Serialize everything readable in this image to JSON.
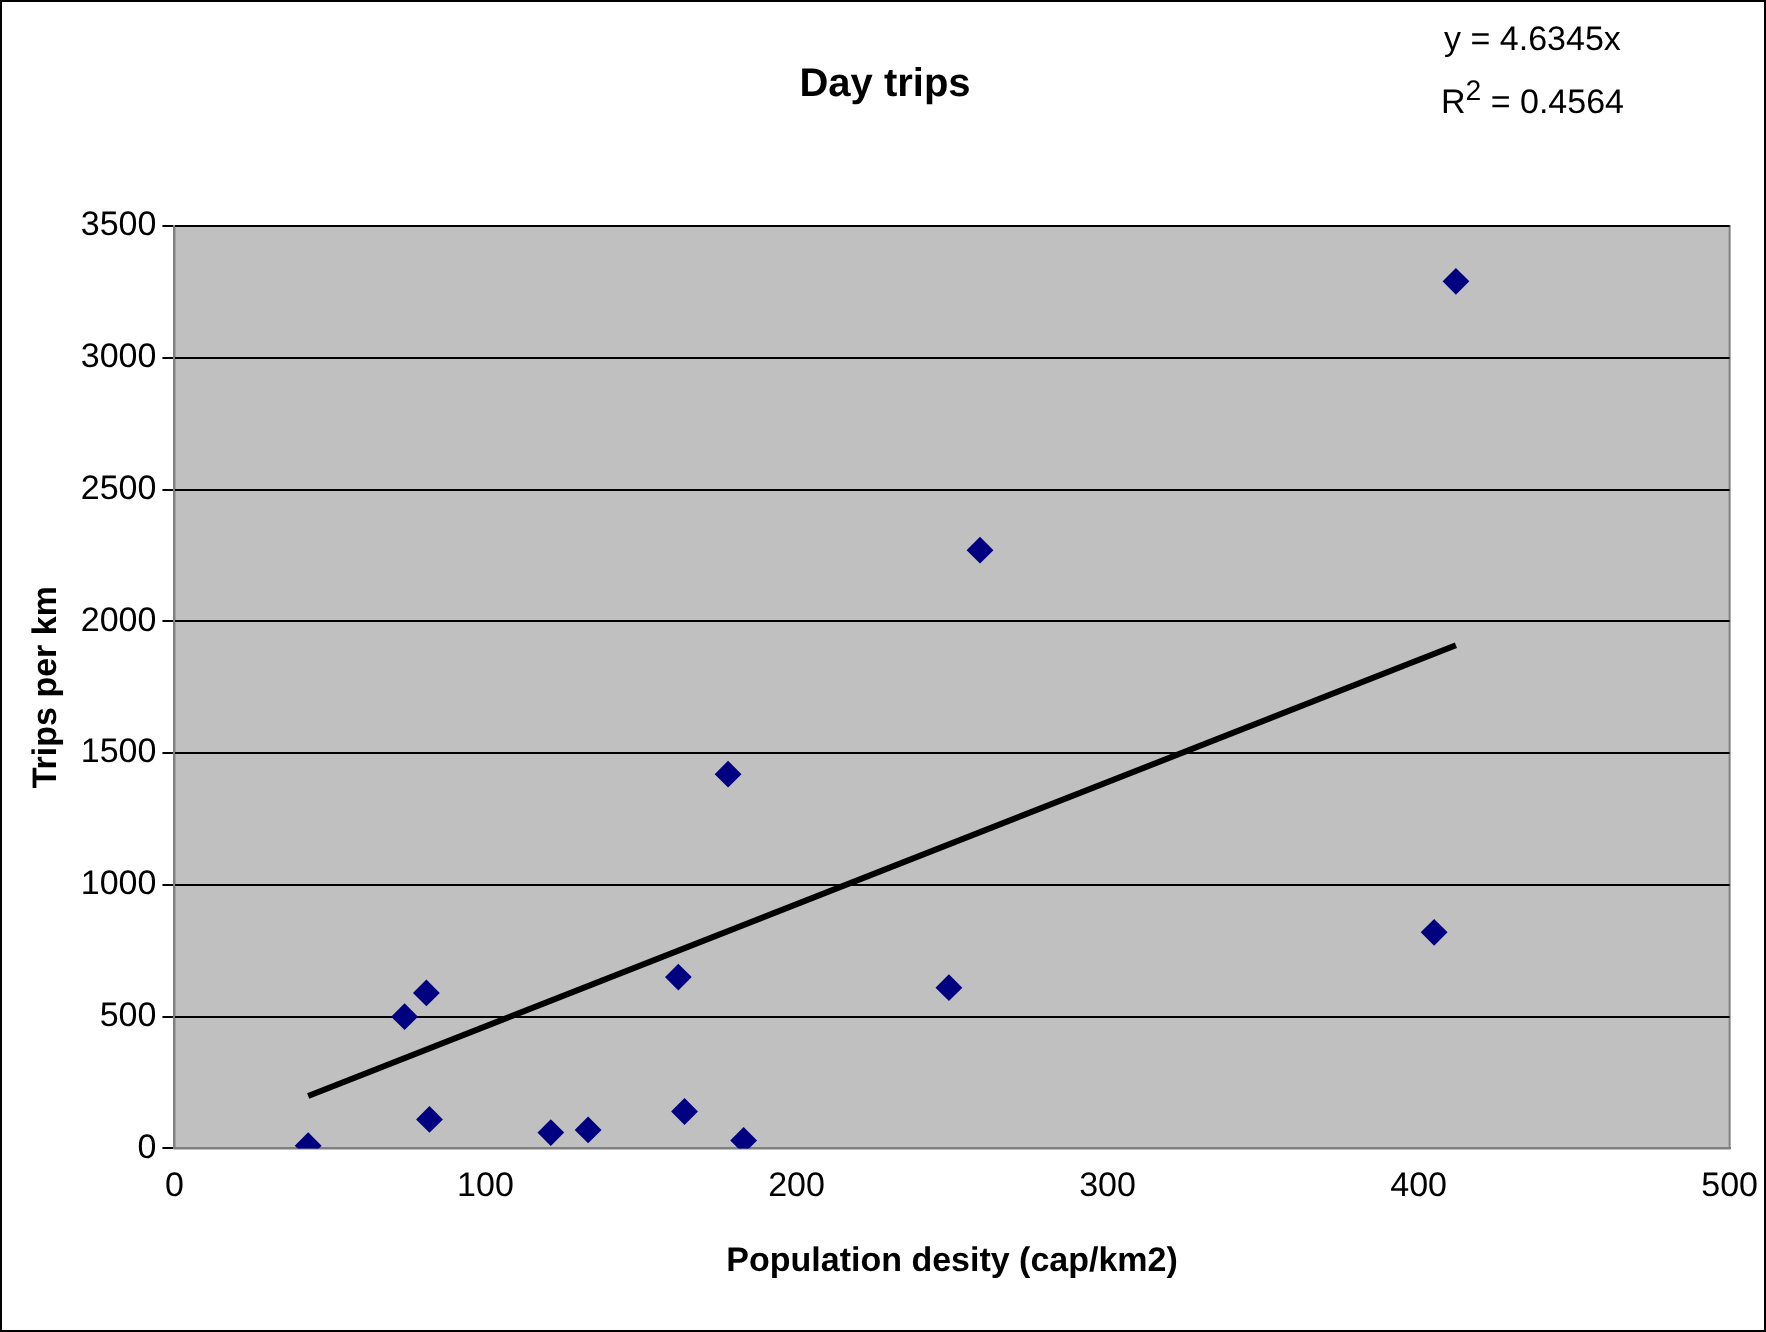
{
  "chart_data": {
    "type": "scatter",
    "title": "Day trips",
    "xlabel": "Population desity (cap/km2)",
    "ylabel": "Trips per km",
    "series": [
      {
        "color": "#000080",
        "marker": "diamond",
        "x": [
          43,
          74,
          81,
          82,
          121,
          133,
          162,
          164,
          178,
          183,
          249,
          259,
          405,
          412
        ],
        "values": [
          10,
          500,
          590,
          110,
          60,
          70,
          650,
          140,
          1420,
          30,
          610,
          2270,
          820,
          3290
        ]
      },
      {
        "type": "line",
        "color": "#000000",
        "marker": "none",
        "x": [
          43,
          412
        ],
        "values": [
          199,
          1909
        ]
      }
    ],
    "xlim": [
      0,
      500
    ],
    "xticks": [
      0,
      100,
      200,
      300,
      400,
      500
    ],
    "ylim": [
      0,
      3500
    ],
    "yticks": [
      0,
      500,
      1000,
      1500,
      2000,
      2500,
      3000,
      3500
    ],
    "grid": "y",
    "legend": false,
    "annotations": [
      "y = 4.6345x",
      "R$^{2}$ = 0.4564"
    ]
  }
}
